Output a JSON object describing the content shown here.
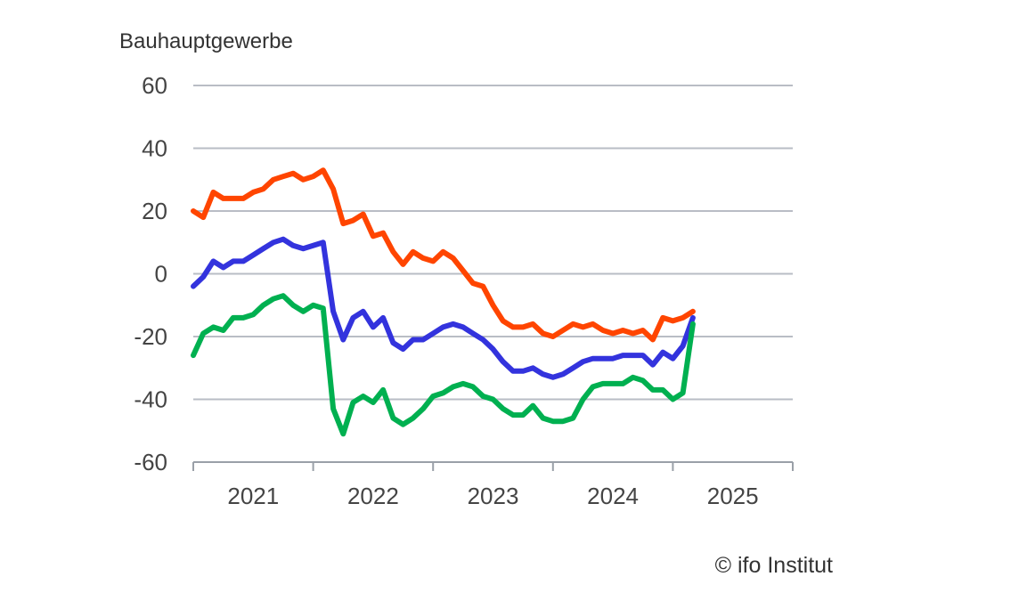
{
  "chart_data": {
    "type": "line",
    "title": "Bauhauptgewerbe",
    "ylim": [
      -60,
      60
    ],
    "yticks": [
      "60",
      "40",
      "20",
      "0",
      "-20",
      "-40",
      "-60"
    ],
    "ytick_values": [
      60,
      40,
      20,
      0,
      -20,
      -40,
      -60
    ],
    "xlim": [
      2021.0,
      2026.0
    ],
    "xticks": [
      "2021",
      "2022",
      "2023",
      "2024",
      "2025"
    ],
    "grid": true,
    "legend": "none",
    "x": [
      2021.0,
      2021.083,
      2021.167,
      2021.25,
      2021.333,
      2021.417,
      2021.5,
      2021.583,
      2021.667,
      2021.75,
      2021.833,
      2021.917,
      2022.0,
      2022.083,
      2022.167,
      2022.25,
      2022.333,
      2022.417,
      2022.5,
      2022.583,
      2022.667,
      2022.75,
      2022.833,
      2022.917,
      2023.0,
      2023.083,
      2023.167,
      2023.25,
      2023.333,
      2023.417,
      2023.5,
      2023.583,
      2023.667,
      2023.75,
      2023.833,
      2023.917,
      2024.0,
      2024.083,
      2024.167,
      2024.25,
      2024.333,
      2024.417,
      2024.5,
      2024.583,
      2024.667,
      2024.75,
      2024.833,
      2024.917,
      2025.0,
      2025.083,
      2025.167
    ],
    "series": [
      {
        "color": "#ff4500",
        "values": [
          20,
          18,
          26,
          24,
          24,
          24,
          26,
          27,
          30,
          31,
          32,
          30,
          31,
          33,
          27,
          16,
          17,
          19,
          12,
          13,
          7,
          3,
          7,
          5,
          4,
          7,
          5,
          1,
          -3,
          -4,
          -10,
          -15,
          -17,
          -17,
          -16,
          -19,
          -20,
          -18,
          -16,
          -17,
          -16,
          -18,
          -19,
          -18,
          -19,
          -18,
          -21,
          -14,
          -15,
          -14,
          -12
        ]
      },
      {
        "color": "#3333dd",
        "values": [
          -4,
          -1,
          4,
          2,
          4,
          4,
          6,
          8,
          10,
          11,
          9,
          8,
          9,
          10,
          -12,
          -21,
          -14,
          -12,
          -17,
          -14,
          -22,
          -24,
          -21,
          -21,
          -19,
          -17,
          -16,
          -17,
          -19,
          -21,
          -24,
          -28,
          -31,
          -31,
          -30,
          -32,
          -33,
          -32,
          -30,
          -28,
          -27,
          -27,
          -27,
          -26,
          -26,
          -26,
          -29,
          -25,
          -27,
          -23,
          -14
        ]
      },
      {
        "color": "#00b050",
        "values": [
          -26,
          -19,
          -17,
          -18,
          -14,
          -14,
          -13,
          -10,
          -8,
          -7,
          -10,
          -12,
          -10,
          -11,
          -43,
          -51,
          -41,
          -39,
          -41,
          -37,
          -46,
          -48,
          -46,
          -43,
          -39,
          -38,
          -36,
          -35,
          -36,
          -39,
          -40,
          -43,
          -45,
          -45,
          -42,
          -46,
          -47,
          -47,
          -46,
          -40,
          -36,
          -35,
          -35,
          -35,
          -33,
          -34,
          -37,
          -37,
          -40,
          -38,
          -16
        ]
      }
    ]
  },
  "credit": "© ifo Institut"
}
